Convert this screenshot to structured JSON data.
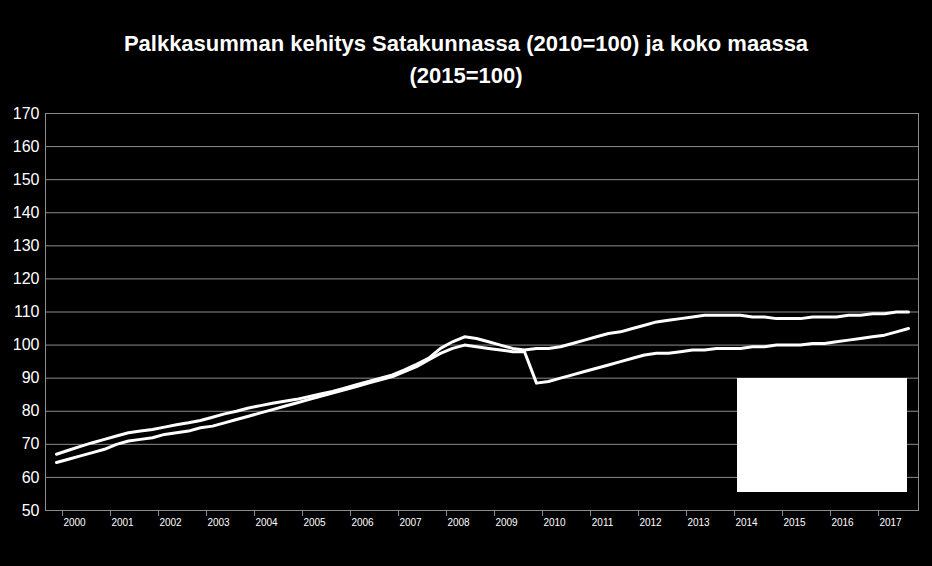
{
  "chart_data": {
    "type": "line",
    "title": "Palkkasumman kehitys Satakunnassa (2010=100) ja koko maassa (2015=100)",
    "categories": [
      null,
      "2000",
      null,
      null,
      null,
      "2001",
      null,
      null,
      null,
      "2002",
      null,
      null,
      null,
      "2003",
      null,
      null,
      null,
      "2004",
      null,
      null,
      null,
      "2005",
      null,
      null,
      null,
      "2006",
      null,
      null,
      null,
      "2007",
      null,
      null,
      null,
      "2008",
      null,
      null,
      null,
      "2009",
      null,
      null,
      null,
      "2010",
      null,
      null,
      null,
      "2011",
      null,
      null,
      null,
      "2012",
      null,
      null,
      null,
      "2013",
      null,
      null,
      null,
      "2014",
      null,
      null,
      null,
      "2015",
      null,
      null,
      null,
      "2016",
      null,
      null,
      null,
      "2017",
      null,
      null
    ],
    "series": [
      {
        "color": "#ffffff",
        "values": [
          67,
          68.2,
          69.4,
          70.5,
          71.5,
          72.5,
          73.5,
          74,
          74.5,
          75.2,
          75.9,
          76.5,
          77.2,
          78.2,
          79.2,
          80,
          81,
          81.7,
          82.4,
          83,
          83.6,
          84.4,
          85.2,
          86,
          87,
          88,
          89,
          90,
          91,
          92.5,
          94.2,
          96,
          99,
          101,
          102.5,
          102,
          101,
          100,
          99,
          98.5,
          99,
          99,
          99.5,
          100.5,
          101.5,
          102.5,
          103.5,
          104,
          105,
          106,
          107,
          107.5,
          108,
          108.5,
          109,
          109,
          109,
          109,
          108.5,
          108.5,
          108,
          108,
          108,
          108.5,
          108.5,
          108.5,
          109,
          109,
          109.5,
          109.5,
          110,
          110
        ]
      },
      {
        "color": "#ffffff",
        "values": [
          64.5,
          65.5,
          66.5,
          67.5,
          68.5,
          70,
          71,
          71.5,
          72,
          73,
          73.5,
          74,
          75,
          75.5,
          76.5,
          77.5,
          78.5,
          79.5,
          80.5,
          81.5,
          82.5,
          83.5,
          84.5,
          85.5,
          86.5,
          87.5,
          88.5,
          89.5,
          90.5,
          92,
          93.5,
          95.5,
          97.5,
          99,
          100,
          99.5,
          99,
          98.5,
          98,
          98,
          88.5,
          89,
          90,
          91,
          92,
          93,
          94,
          95,
          96,
          97,
          97.5,
          97.5,
          98,
          98.5,
          98.5,
          99,
          99,
          99,
          99.5,
          99.5,
          100,
          100,
          100,
          100.5,
          100.5,
          101,
          101.5,
          102,
          102.5,
          103,
          104,
          105
        ]
      }
    ],
    "ylim": [
      50,
      170
    ],
    "yticks": [
      50,
      60,
      70,
      80,
      90,
      100,
      110,
      120,
      130,
      140,
      150,
      160,
      170
    ],
    "grid": true
  }
}
